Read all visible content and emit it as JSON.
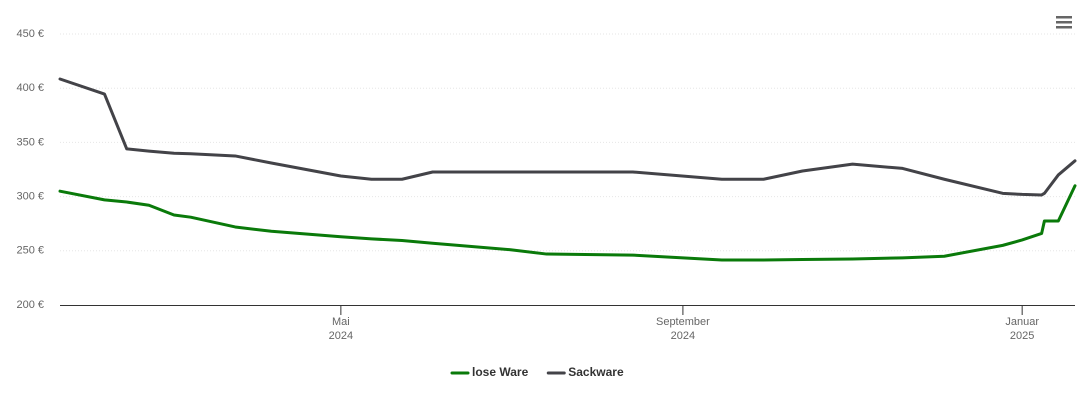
{
  "chart_data": {
    "type": "line",
    "x": [
      "2024-01-21",
      "2024-02-06",
      "2024-02-14",
      "2024-02-22",
      "2024-03-02",
      "2024-03-08",
      "2024-03-24",
      "2024-04-06",
      "2024-05-01",
      "2024-05-12",
      "2024-05-23",
      "2024-06-03",
      "2024-07-01",
      "2024-07-14",
      "2024-08-14",
      "2024-09-15",
      "2024-09-30",
      "2024-10-14",
      "2024-11-01",
      "2024-11-19",
      "2024-12-04",
      "2024-12-25",
      "2025-01-01",
      "2025-01-08",
      "2025-01-09",
      "2025-01-14",
      "2025-01-20"
    ],
    "series": [
      {
        "name": "lose Ware",
        "color": "#0a7a0a",
        "values": [
          305,
          297,
          295,
          292,
          283,
          281,
          272,
          268,
          263,
          261,
          259.5,
          257,
          251,
          247,
          246,
          241.5,
          241.5,
          242,
          242.4,
          243.5,
          245,
          255,
          260,
          266,
          277.5,
          277.5,
          310
        ]
      },
      {
        "name": "Sackware",
        "color": "#434348",
        "values": [
          408.5,
          394.6,
          344,
          342,
          340,
          339.5,
          337.5,
          331,
          319,
          316,
          316,
          322.7,
          322.7,
          322.7,
          322.7,
          316,
          316,
          323.6,
          330,
          326,
          316,
          303,
          302,
          301.5,
          303,
          320,
          333
        ]
      }
    ],
    "xlim": [
      "2024-01-21",
      "2025-01-20"
    ],
    "xticks": [
      {
        "value": "2024-05-01",
        "label": "Mai",
        "sublabel": "2024"
      },
      {
        "value": "2024-09-01",
        "label": "September",
        "sublabel": "2024"
      },
      {
        "value": "2025-01-01",
        "label": "Januar",
        "sublabel": "2025"
      }
    ],
    "ylim": [
      200,
      450
    ],
    "yticks": [
      {
        "value": 200,
        "label": "200 €"
      },
      {
        "value": 250,
        "label": "250 €"
      },
      {
        "value": 300,
        "label": "300 €"
      },
      {
        "value": 350,
        "label": "350 €"
      },
      {
        "value": 400,
        "label": "400 €"
      },
      {
        "value": 450,
        "label": "450 €"
      }
    ],
    "grid": true,
    "legend": "bottom"
  }
}
